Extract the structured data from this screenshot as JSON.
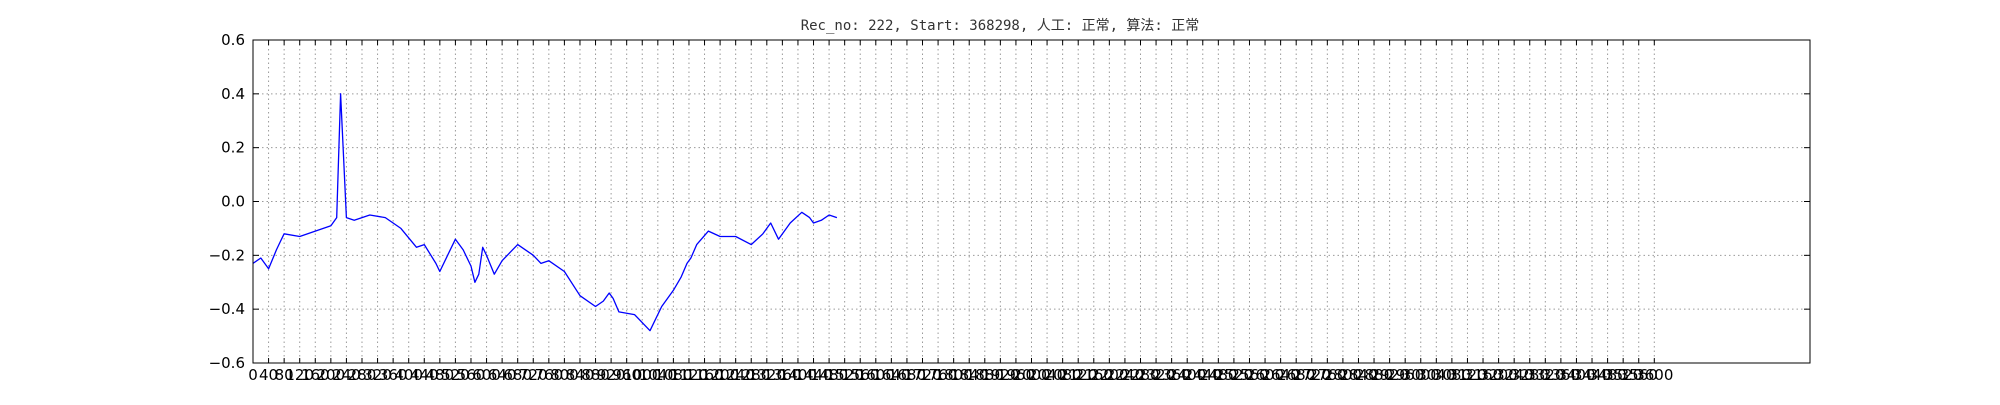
{
  "chart_data": {
    "type": "line",
    "title": "Rec_no: 222, Start: 368298, 人工: 正常, 算法: 正常",
    "xlabel": "",
    "ylabel": "",
    "xlim": [
      0,
      4000
    ],
    "ylim": [
      -0.6,
      0.6
    ],
    "grid": true,
    "yticks": [
      -0.6,
      -0.4,
      -0.2,
      0.0,
      0.2,
      0.4,
      0.6
    ],
    "ytick_labels": [
      "−0.6",
      "−0.4",
      "−0.2",
      "0.0",
      "0.2",
      "0.4",
      "0.6"
    ],
    "xticks": [
      0,
      40,
      80,
      120,
      160,
      200,
      240,
      280,
      320,
      360,
      400,
      440,
      480,
      520,
      560,
      600,
      640,
      680,
      720,
      760,
      800,
      840,
      880,
      920,
      960,
      1000,
      1040,
      1080,
      1120,
      1160,
      1200,
      1240,
      1280,
      1320,
      1360,
      1400,
      1440,
      1480,
      1520,
      1560,
      1600,
      1640,
      1680,
      1720,
      1760,
      1800,
      1840,
      1880,
      1920,
      1960,
      2000,
      2040,
      2080,
      2120,
      2160,
      2200,
      2240,
      2280,
      2320,
      2360,
      2400,
      2440,
      2480,
      2520,
      2560,
      2600,
      2640,
      2680,
      2720,
      2760,
      2800,
      2840,
      2880,
      2920,
      2960,
      3000,
      3040,
      3080,
      3120,
      3160,
      3200,
      3240,
      3280,
      3320,
      3360,
      3400,
      3440,
      3480,
      3520,
      3560,
      3600
    ],
    "xtick_labels": [
      "0",
      "40",
      "80",
      "120",
      "160",
      "200",
      "240",
      "280",
      "320",
      "360",
      "400",
      "440",
      "480",
      "520",
      "560",
      "600",
      "640",
      "680",
      "720",
      "760",
      "800",
      "840",
      "880",
      "920",
      "960",
      "1000",
      "1040",
      "1080",
      "1120",
      "1160",
      "1200",
      "1240",
      "1280",
      "1320",
      "1360",
      "1400",
      "1440",
      "1480",
      "1520",
      "1560",
      "1600",
      "1640",
      "1680",
      "1720",
      "1760",
      "1800",
      "1840",
      "1880",
      "1920",
      "1960",
      "2000",
      "2040",
      "2080",
      "2120",
      "2160",
      "2200",
      "2240",
      "2280",
      "2320",
      "2360",
      "2400",
      "2440",
      "2480",
      "2520",
      "2560",
      "2600",
      "2640",
      "2680",
      "2720",
      "2760",
      "2800",
      "2840",
      "2880",
      "2920",
      "2960",
      "3000",
      "3040",
      "3080",
      "3120",
      "3160",
      "3200",
      "3240",
      "3280",
      "3320",
      "3360",
      "3400",
      "3440",
      "3480",
      "3520",
      "3560",
      "3600"
    ],
    "series": [
      {
        "color": "#0000ff",
        "x": [
          0,
          20,
          40,
          60,
          70,
          80,
          120,
          160,
          200,
          215,
          225,
          240,
          260,
          300,
          340,
          380,
          420,
          440,
          470,
          480,
          500,
          520,
          540,
          560,
          570,
          580,
          590,
          600,
          620,
          640,
          660,
          680,
          700,
          720,
          740,
          760,
          800,
          840,
          880,
          900,
          915,
          925,
          940,
          980,
          1020,
          1050,
          1080,
          1100,
          1115,
          1125,
          1140,
          1170,
          1200,
          1240,
          1280,
          1310,
          1330,
          1350,
          1380,
          1410,
          1430,
          1440,
          1460,
          1480,
          1500
        ],
        "y": [
          -0.23,
          -0.21,
          -0.25,
          -0.18,
          -0.15,
          -0.12,
          -0.13,
          -0.11,
          -0.09,
          -0.06,
          0.4,
          -0.06,
          -0.07,
          -0.05,
          -0.06,
          -0.1,
          -0.17,
          -0.16,
          -0.23,
          -0.26,
          -0.2,
          -0.14,
          -0.18,
          -0.24,
          -0.3,
          -0.27,
          -0.17,
          -0.2,
          -0.27,
          -0.22,
          -0.19,
          -0.16,
          -0.18,
          -0.2,
          -0.23,
          -0.22,
          -0.26,
          -0.35,
          -0.39,
          -0.37,
          -0.34,
          -0.36,
          -0.41,
          -0.42,
          -0.48,
          -0.39,
          -0.33,
          -0.28,
          -0.23,
          -0.21,
          -0.16,
          -0.11,
          -0.13,
          -0.13,
          -0.16,
          -0.12,
          -0.08,
          -0.14,
          -0.08,
          -0.04,
          -0.06,
          -0.08,
          -0.07,
          -0.05,
          -0.06
        ]
      }
    ],
    "annotations": []
  }
}
